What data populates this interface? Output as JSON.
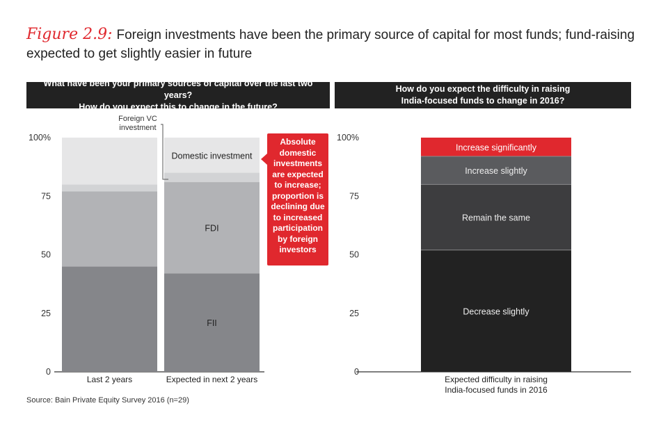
{
  "figure": {
    "label": "Figure 2.9:",
    "title": "Foreign investments have been the primary source of capital for most funds; fund-raising expected to get slightly easier in future"
  },
  "left_panel": {
    "header_line1": "What have been your primary sources of capital over the last two years?",
    "header_line2": "How do you expect this to change in the future?"
  },
  "right_panel": {
    "header_line1": "How do you expect the difficulty in raising",
    "header_line2": "India-focused funds to change in 2016?"
  },
  "callout": {
    "text": "Absolute domestic investments are expected to increase; proportion is declining due to increased participation by foreign investors"
  },
  "source": "Source: Bain Private Equity Survey 2016 (n=29)",
  "chart_data": [
    {
      "type": "bar",
      "stacked": true,
      "categories": [
        "Last 2 years",
        "Expected in next 2 years"
      ],
      "ylim": [
        0,
        100
      ],
      "yticks": [
        "0",
        "25",
        "50",
        "75",
        "100%"
      ],
      "ytick_values": [
        0,
        25,
        50,
        75,
        100
      ],
      "series": [
        {
          "name": "FII",
          "values": [
            45,
            42
          ],
          "color": "#85868a"
        },
        {
          "name": "FDI",
          "values": [
            32,
            39
          ],
          "color": "#b2b3b6"
        },
        {
          "name": "Foreign VC investment",
          "values": [
            3,
            4
          ],
          "color": "#d2d3d5"
        },
        {
          "name": "Domestic investment",
          "values": [
            20,
            15
          ],
          "color": "#e6e6e7"
        }
      ],
      "series_labels": [
        {
          "series": "FII",
          "category_index": 1,
          "text": "FII"
        },
        {
          "series": "FDI",
          "category_index": 1,
          "text": "FDI"
        },
        {
          "series": "Domestic investment",
          "category_index": 1,
          "text": "Domestic investment"
        }
      ],
      "annotation": {
        "text_line1": "Foreign VC",
        "text_line2": "investment"
      }
    },
    {
      "type": "bar",
      "stacked": true,
      "categories": [
        "Expected difficulty in raising India-focused funds in 2016"
      ],
      "category_lines": [
        "Expected difficulty in raising",
        "India-focused funds in 2016"
      ],
      "ylim": [
        0,
        100
      ],
      "yticks": [
        "0",
        "25",
        "50",
        "75",
        "100%"
      ],
      "ytick_values": [
        0,
        25,
        50,
        75,
        100
      ],
      "series": [
        {
          "name": "Decrease slightly",
          "values": [
            52
          ],
          "color": "#222222"
        },
        {
          "name": "Remain the same",
          "values": [
            28
          ],
          "color": "#3d3d3f"
        },
        {
          "name": "Increase slightly",
          "values": [
            12
          ],
          "color": "#5a5b5e"
        },
        {
          "name": "Increase significantly",
          "values": [
            8
          ],
          "color": "#e0282e"
        }
      ]
    }
  ]
}
